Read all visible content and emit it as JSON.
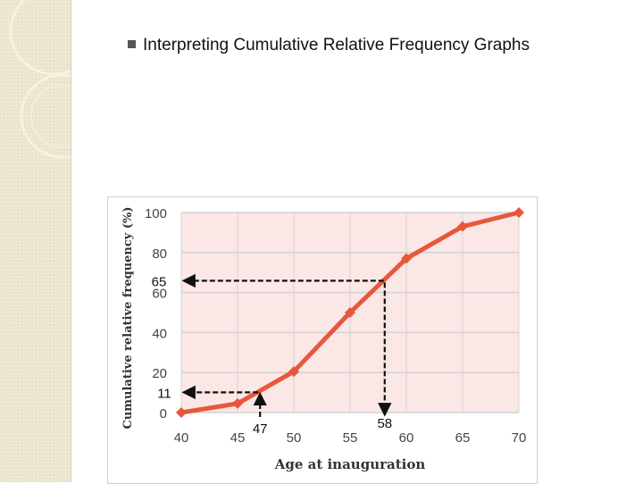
{
  "slide": {
    "title": "Interpreting Cumulative Relative Frequency Graphs"
  },
  "colors": {
    "line": "#e8573c",
    "plot_background": "#fbe7e6",
    "grid": "#d3d3d3",
    "side_strip": "#ece3cc"
  },
  "chart_data": {
    "type": "line",
    "title": "",
    "xlabel": "Age at inauguration",
    "ylabel": "Cumulative relative frequency (%)",
    "x": [
      40,
      45,
      50,
      55,
      60,
      65,
      70
    ],
    "series": [
      {
        "values": [
          0,
          4.5,
          20.5,
          50,
          77,
          93,
          100
        ]
      }
    ],
    "xlim": [
      40,
      70
    ],
    "ylim": [
      0,
      100
    ],
    "xticks": [
      40,
      45,
      50,
      55,
      60,
      65,
      70
    ],
    "yticks": [
      0,
      20,
      40,
      60,
      80,
      100
    ],
    "grid": true,
    "annotations": [
      {
        "label": "65",
        "y": 65,
        "x": 58,
        "label_x": "58",
        "x_label_text": "58"
      },
      {
        "label": "11",
        "y": 11,
        "x": 47,
        "x_label_text": "47"
      }
    ]
  }
}
